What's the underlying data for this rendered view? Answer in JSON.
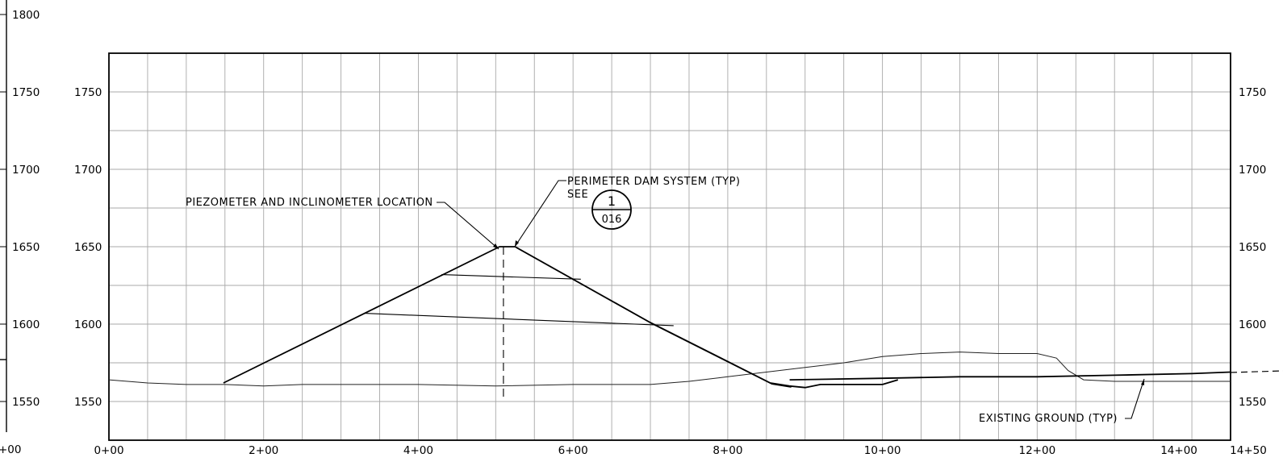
{
  "chart_data": {
    "type": "line",
    "title": "",
    "xlabel": "",
    "ylabel": "",
    "xlim": [
      0,
      1450
    ],
    "ylim": [
      1525,
      1775
    ],
    "grid": true,
    "x_tick_labels": [
      "0+00",
      "2+00",
      "4+00",
      "6+00",
      "8+00",
      "10+00",
      "12+00",
      "14+00",
      "14+50"
    ],
    "left_offsheet_label": "+00",
    "y_tick_labels": [
      "1550",
      "1600",
      "1650",
      "1700",
      "1750"
    ],
    "y_axis_outer_labels": [
      "1550",
      "1600",
      "1650",
      "1700",
      "1750",
      "1800"
    ],
    "series": [
      {
        "role": "existing-ground",
        "x": [
          0,
          50,
          100,
          150,
          200,
          250,
          300,
          400,
          500,
          600,
          700,
          750,
          800,
          850,
          900,
          950,
          1000,
          1050,
          1100,
          1150,
          1200,
          1225,
          1240,
          1260,
          1300,
          1350,
          1400,
          1450
        ],
        "y": [
          1564,
          1562,
          1561,
          1561,
          1560,
          1561,
          1561,
          1561,
          1560,
          1561,
          1561,
          1563,
          1566,
          1569,
          1572,
          1575,
          1579,
          1581,
          1582,
          1581,
          1581,
          1578,
          1570,
          1564,
          1563,
          1563,
          1563,
          1563
        ]
      },
      {
        "role": "dam-upstream-slope",
        "x": [
          148,
          505,
          525
        ],
        "y": [
          1562,
          1650,
          1650
        ]
      },
      {
        "role": "dam-downstream-slope",
        "x": [
          525,
          700,
          855,
          880
        ],
        "y": [
          1650,
          1601,
          1562,
          1560
        ]
      },
      {
        "role": "upper-bench",
        "x": [
          430,
          610
        ],
        "y": [
          1632,
          1629
        ]
      },
      {
        "role": "lower-bench",
        "x": [
          330,
          730
        ],
        "y": [
          1607,
          1599
        ]
      },
      {
        "role": "toe-channel",
        "x": [
          880,
          900,
          920,
          1000,
          1020
        ],
        "y": [
          1560,
          1559,
          1561,
          1561,
          1564
        ]
      },
      {
        "role": "downstream-grade",
        "x": [
          880,
          1000,
          1100,
          1200,
          1300,
          1400,
          1450
        ],
        "y": [
          1564,
          1565,
          1566,
          1566,
          1567,
          1568,
          1569
        ]
      },
      {
        "role": "piezometer-inclinometer",
        "x": [
          510,
          510
        ],
        "y": [
          1650,
          1550
        ]
      }
    ],
    "annotations": [
      {
        "text": "PIEZOMETER AND INCLINOMETER LOCATION"
      },
      {
        "text_line1": "PERIMETER DAM SYSTEM (TYP)",
        "text_line2": "SEE"
      },
      {
        "detail_number": "1",
        "sheet_number": "016"
      },
      {
        "text": "EXISTING GROUND (TYP)"
      }
    ]
  }
}
